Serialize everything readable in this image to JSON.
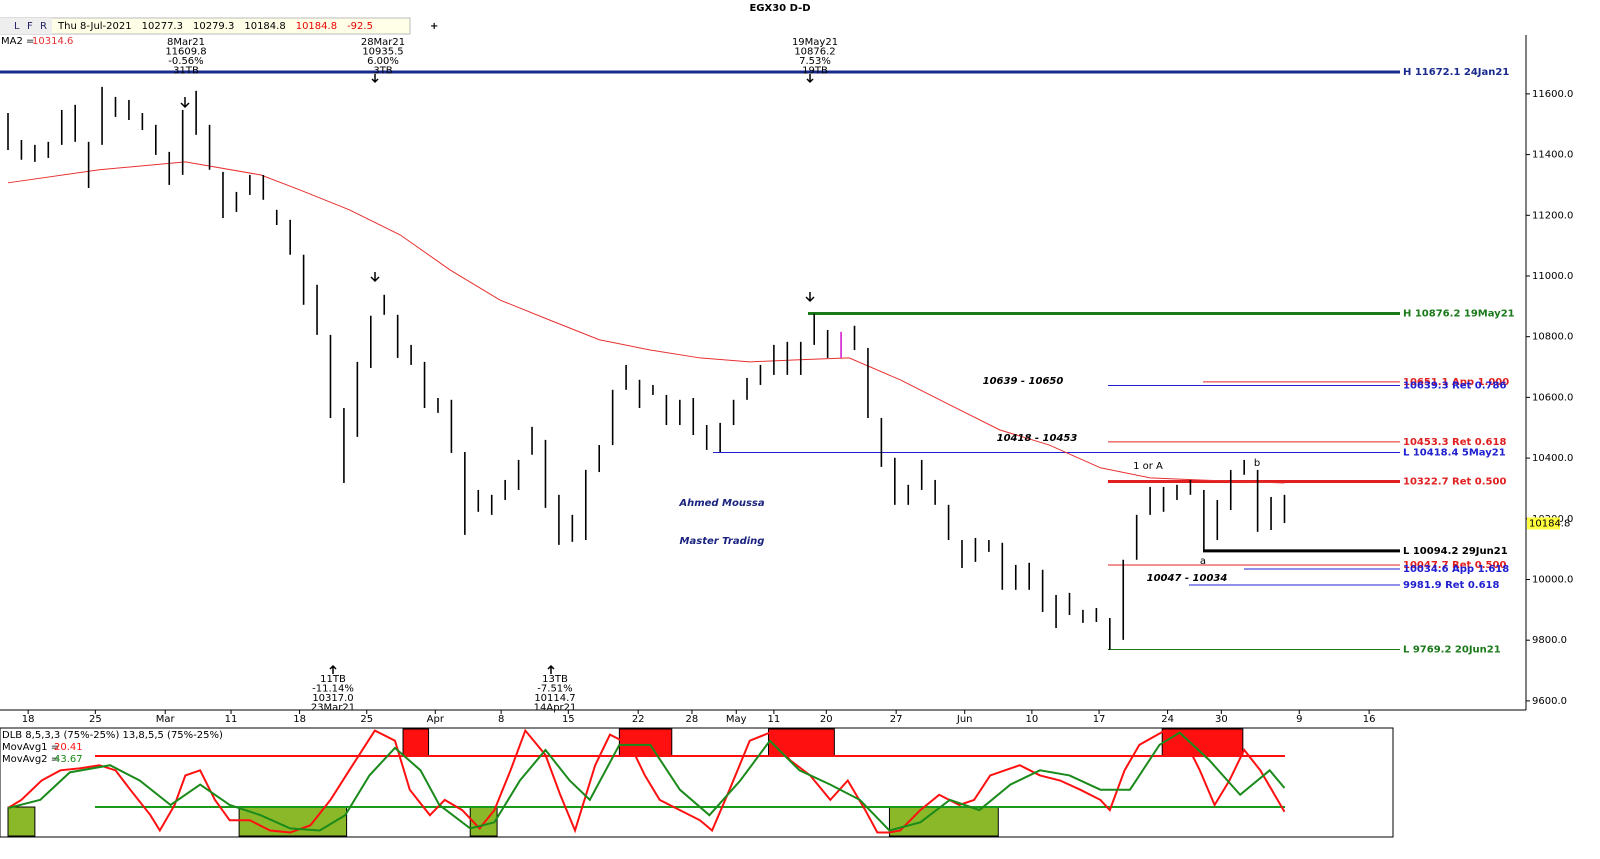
{
  "header": {
    "buttons": [
      "L",
      "F",
      "R"
    ],
    "date": "Thu 8-Jul-2021",
    "open": 10277.3,
    "high": 10279.3,
    "low": 10184.8,
    "close": 10184.8,
    "change": -92.5
  },
  "chart_data": [
    {
      "type": "ohlc",
      "title": "EGX30 D-D",
      "high": [
        11537,
        11448,
        11432,
        11442,
        11547,
        11564,
        11442,
        11623,
        11590,
        11580,
        11537,
        11498,
        11409,
        11547,
        11610,
        11498,
        11343,
        11277,
        11333,
        11333,
        11218,
        11185,
        11070,
        10971,
        10806,
        10565,
        10717,
        10869,
        10938,
        10872,
        10773,
        10717,
        10598,
        10592,
        10420,
        10295,
        10279,
        10328,
        10394,
        10503,
        10460,
        10279,
        10213,
        10361,
        10443,
        10625,
        10707,
        10658,
        10641,
        10608,
        10592,
        10598,
        10509,
        10516,
        10592,
        10664,
        10707,
        10773,
        10783,
        10783,
        10876,
        10822,
        10816,
        10836,
        10763,
        10532,
        10401,
        10312,
        10394,
        10328,
        10246,
        10130,
        10137,
        10130,
        10121,
        10048,
        10055,
        10032,
        9949,
        9956,
        9900,
        9906,
        9873,
        10065,
        10213,
        10305,
        10305,
        10312,
        10328,
        10295,
        10262,
        10361,
        10394,
        10361,
        10272,
        10279
      ],
      "low": [
        11415,
        11383,
        11376,
        11389,
        11432,
        11442,
        11290,
        11432,
        11524,
        11514,
        11481,
        11399,
        11300,
        11333,
        11465,
        11350,
        11191,
        11211,
        11267,
        11251,
        11168,
        11070,
        10905,
        10806,
        10532,
        10318,
        10470,
        10697,
        10872,
        10730,
        10707,
        10565,
        10549,
        10417,
        10147,
        10223,
        10213,
        10262,
        10295,
        10411,
        10236,
        10114,
        10124,
        10130,
        10354,
        10443,
        10625,
        10565,
        10608,
        10509,
        10509,
        10476,
        10427,
        10420,
        10509,
        10592,
        10641,
        10674,
        10674,
        10674,
        10773,
        10730,
        10730,
        10756,
        10532,
        10371,
        10246,
        10246,
        10295,
        10246,
        10130,
        10038,
        10058,
        10091,
        9966,
        9966,
        9966,
        9893,
        9840,
        9883,
        9857,
        9860,
        9769,
        9801,
        10065,
        10213,
        10223,
        10262,
        10279,
        10094,
        10130,
        10229,
        10345,
        10157,
        10163,
        10186
      ],
      "color": "#000000",
      "series": [
        {
          "name": "MA2 =",
          "color": "#e83030",
          "last": 10314.6,
          "x": [
            0,
            6.8,
            13.2,
            18.8,
            21.7,
            25.4,
            29.2,
            32.9,
            36.6,
            40.3,
            44.0,
            47.8,
            51.5,
            55.2,
            58.9,
            62.6,
            66.4,
            70.1,
            73.8,
            77.5,
            81.3,
            85.0,
            88.7,
            95.0
          ],
          "values": [
            11307,
            11350,
            11376,
            11333,
            11284,
            11218,
            11135,
            11020,
            10921,
            10855,
            10790,
            10756,
            10730,
            10717,
            10724,
            10730,
            10658,
            10575,
            10493,
            10443,
            10368,
            10335,
            10328,
            10318
          ]
        }
      ],
      "ylim": [
        9570,
        11794
      ],
      "yticks": [
        {
          "value": 9600,
          "label": "9600.0"
        },
        {
          "value": 9800,
          "label": "9800.0"
        },
        {
          "value": 10000,
          "label": "10000.0"
        },
        {
          "value": 10200,
          "label": "10200.0"
        },
        {
          "value": 10400,
          "label": "10400.0"
        },
        {
          "value": 10600,
          "label": "10600.0"
        },
        {
          "value": 10800,
          "label": "10800.0"
        },
        {
          "value": 11000,
          "label": "11000.0"
        },
        {
          "value": 11200,
          "label": "11200.0"
        },
        {
          "value": 11400,
          "label": "11400.0"
        },
        {
          "value": 11600,
          "label": "11600.0"
        }
      ],
      "xlim": [
        0,
        112.9
      ],
      "xticks": [
        {
          "value": 1.5,
          "label": "18"
        },
        {
          "value": 6.5,
          "label": "25"
        },
        {
          "value": 11.7,
          "label": "Mar"
        },
        {
          "value": 16.6,
          "label": "11"
        },
        {
          "value": 21.7,
          "label": "18"
        },
        {
          "value": 26.7,
          "label": "25"
        },
        {
          "value": 31.8,
          "label": "Apr"
        },
        {
          "value": 36.7,
          "label": "8"
        },
        {
          "value": 41.7,
          "label": "15"
        },
        {
          "value": 46.9,
          "label": "22"
        },
        {
          "value": 50.9,
          "label": "28"
        },
        {
          "value": 54.2,
          "label": "May"
        },
        {
          "value": 57.0,
          "label": "11"
        },
        {
          "value": 60.9,
          "label": "20"
        },
        {
          "value": 66.1,
          "label": "27"
        },
        {
          "value": 71.2,
          "label": "Jun"
        },
        {
          "value": 76.2,
          "label": "10"
        },
        {
          "value": 81.2,
          "label": "17"
        },
        {
          "value": 86.3,
          "label": "24"
        },
        {
          "value": 90.3,
          "label": "30"
        },
        {
          "value": 96.1,
          "label": "9"
        },
        {
          "value": 101.3,
          "label": "16"
        }
      ],
      "levels": [
        {
          "label": "H 11672.1 24Jan21",
          "value": 11672.1,
          "color": "#1a2a8c"
        },
        {
          "label": "H 10876.2 19May21",
          "value": 10876.2,
          "color": "#1a7a1a"
        },
        {
          "label": "10651.1 App 1.000",
          "value": 10651.1,
          "color": "#e02020"
        },
        {
          "label": "10639.3 Ret 0.786",
          "value": 10639.3,
          "color": "#2020d0"
        },
        {
          "label": "10453.3 Ret 0.618",
          "value": 10453.3,
          "color": "#e02020"
        },
        {
          "label": "L 10418.4 5May21",
          "value": 10418.4,
          "color": "#2020d0"
        },
        {
          "label": "10322.7 Ret 0.500",
          "value": 10322.7,
          "color": "#e02020"
        },
        {
          "label": "L 10094.2 29Jun21",
          "value": 10094.2,
          "color": "#000000"
        },
        {
          "label": "10047.7 Ret 0.500",
          "value": 10047.7,
          "color": "#e02020"
        },
        {
          "label": "10034.6 App 1.618",
          "value": 10034.6,
          "color": "#2020d0"
        },
        {
          "label": "9981.9 Ret 0.618",
          "value": 9981.9,
          "color": "#2020d0"
        },
        {
          "label": "L 9769.2 20Jun21",
          "value": 9769.2,
          "color": "#1a7a1a"
        }
      ],
      "annotations_top": [
        [
          "8Mar21",
          "11609.8",
          "-0.56%",
          "31TB"
        ],
        [
          "28Mar21",
          "10935.5",
          "6.00%",
          "3TB"
        ],
        [
          "19May21",
          "10876.2",
          "7.53%",
          "19TB"
        ]
      ],
      "annotations_bottom": [
        [
          "11TB",
          "-11.14%",
          "10317.0",
          "23Mar21"
        ],
        [
          "13TB",
          "-7.51%",
          "10114.7",
          "14Apr21"
        ]
      ],
      "notes": [
        "10639 - 10650",
        "10418 - 10453",
        "10047 - 10034",
        "1 or A",
        "a",
        "b"
      ],
      "watermark": [
        "Ahmed Moussa",
        "Master Trading"
      ]
    },
    {
      "type": "line",
      "label": "DLB 8,5,3,3 (75%-25%) 13,8,5,5 (75%-25%)",
      "ylim": [
        -4.4,
        102.5
      ],
      "xlim": [
        0,
        112.9
      ],
      "levels": [
        {
          "value": 75,
          "color": "#ff1010"
        },
        {
          "value": 25,
          "color": "#1a9a1a"
        }
      ],
      "overbought_zones": [
        [
          29.4,
          31.3
        ],
        [
          45.5,
          49.4
        ],
        [
          56.6,
          61.5
        ],
        [
          85.9,
          91.9
        ]
      ],
      "oversold_zones": [
        [
          0,
          2.0
        ],
        [
          17.2,
          25.2
        ],
        [
          34.4,
          36.4
        ],
        [
          65.6,
          73.7
        ]
      ],
      "series": [
        {
          "name": "MovAvg1 =",
          "color": "#ff1010",
          "last": 20.41,
          "x": [
            0,
            1.0,
            2.5,
            3.9,
            5.4,
            6.8,
            8.0,
            9.1,
            10.6,
            11.3,
            12.4,
            13.2,
            14.3,
            15.4,
            16.5,
            18.0,
            19.5,
            21.0,
            22.5,
            24.0,
            25.4,
            27.3,
            28.8,
            29.9,
            31.4,
            32.5,
            33.8,
            35.1,
            36.2,
            37.4,
            38.5,
            40.0,
            41.1,
            42.2,
            43.7,
            44.8,
            46.3,
            47.4,
            48.5,
            50.0,
            51.5,
            52.4,
            53.7,
            55.2,
            56.7,
            58.2,
            59.7,
            61.2,
            62.5,
            63.8,
            64.7,
            65.6,
            66.4,
            67.9,
            69.3,
            70.8,
            71.9,
            73.1,
            74.2,
            75.3,
            76.8,
            78.3,
            79.8,
            81.3,
            82.0,
            83.1,
            84.2,
            86.1,
            87.6,
            88.7,
            89.8,
            90.9,
            92.0,
            93.2,
            95.0
          ],
          "values": [
            24,
            32,
            51,
            61,
            63,
            66,
            61,
            42,
            17,
            2,
            27,
            56,
            61,
            32,
            12,
            12,
            2,
            0,
            7,
            32,
            61,
            100,
            90,
            42,
            17,
            32,
            22,
            4,
            22,
            61,
            100,
            76,
            37,
            2,
            66,
            96,
            86,
            56,
            32,
            22,
            12,
            2,
            42,
            90,
            98,
            71,
            56,
            32,
            51,
            22,
            0,
            0,
            2,
            22,
            37,
            27,
            32,
            56,
            61,
            66,
            56,
            51,
            42,
            32,
            22,
            61,
            86,
            100,
            90,
            61,
            27,
            51,
            81,
            61,
            20.41
          ]
        },
        {
          "name": "MovAvg2 =",
          "color": "#1a8a1a",
          "last": 43.67,
          "x": [
            0,
            2.4,
            4.6,
            7.6,
            9.8,
            12.1,
            14.3,
            16.5,
            18.8,
            21.0,
            23.2,
            25.1,
            26.9,
            28.8,
            30.7,
            32.1,
            34.4,
            36.2,
            38.1,
            40.0,
            41.8,
            43.3,
            45.5,
            47.8,
            50.0,
            52.2,
            54.5,
            56.7,
            58.9,
            61.2,
            63.4,
            65.6,
            67.9,
            70.1,
            72.3,
            74.6,
            76.8,
            79.0,
            81.3,
            83.5,
            85.7,
            87.2,
            89.4,
            91.7,
            93.9,
            95.0
          ],
          "values": [
            24,
            32,
            59,
            66,
            51,
            27,
            47,
            27,
            17,
            4,
            2,
            17,
            56,
            83,
            61,
            27,
            4,
            10,
            51,
            81,
            51,
            32,
            86,
            86,
            42,
            17,
            51,
            90,
            61,
            47,
            32,
            2,
            10,
            32,
            22,
            47,
            61,
            56,
            42,
            42,
            86,
            98,
            71,
            37,
            61,
            43.67
          ]
        }
      ]
    }
  ]
}
